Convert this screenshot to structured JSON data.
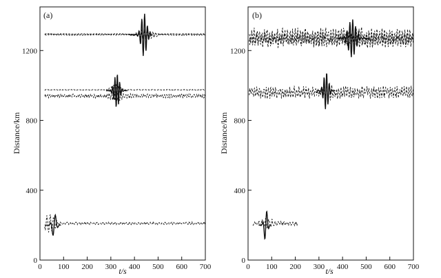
{
  "chart_data": [
    {
      "type": "line",
      "panel_label": "(a)",
      "xlabel": "t/s",
      "ylabel": "Distance/km",
      "xlim": [
        0,
        700
      ],
      "ylim": [
        0,
        1450
      ],
      "xticks": [
        "0",
        "100",
        "200",
        "300",
        "400",
        "500",
        "600",
        "700"
      ],
      "yticks": [
        "0",
        "400",
        "800",
        "1200"
      ],
      "grid": false,
      "series": [
        {
          "style": "solid",
          "offset": 200,
          "t_start": 20,
          "t_end": 90,
          "center": 60,
          "amp": 70,
          "period": 22,
          "width": 12
        },
        {
          "style": "dashed",
          "offset": 210,
          "t_start": 20,
          "t_end": 700,
          "center": 40,
          "amp": 55,
          "period": 14,
          "width": 30,
          "noise": 6
        },
        {
          "style": "solid",
          "offset": 970,
          "t_start": 280,
          "t_end": 370,
          "center": 325,
          "amp": 100,
          "period": 10,
          "width": 15
        },
        {
          "style": "dashed",
          "offset": 975,
          "t_start": 20,
          "t_end": 700,
          "center": 320,
          "amp": 30,
          "period": 10,
          "width": 25,
          "noise": 2
        },
        {
          "style": "dashed",
          "offset": 940,
          "t_start": 20,
          "t_end": 700,
          "center": 330,
          "amp": 30,
          "period": 10,
          "width": 35,
          "noise": 9
        },
        {
          "style": "solid",
          "offset": 1290,
          "t_start": 380,
          "t_end": 475,
          "center": 440,
          "amp": 125,
          "period": 12,
          "width": 16
        },
        {
          "style": "dashed",
          "offset": 1295,
          "t_start": 20,
          "t_end": 700,
          "center": 440,
          "amp": 25,
          "period": 12,
          "width": 30,
          "noise": 2
        },
        {
          "style": "dashed",
          "offset": 1290,
          "t_start": 20,
          "t_end": 700,
          "center": 450,
          "amp": 25,
          "period": 12,
          "width": 40,
          "noise": 3
        }
      ]
    },
    {
      "type": "line",
      "panel_label": "(b)",
      "xlabel": "t/s",
      "ylabel": "Distance/km",
      "xlim": [
        0,
        700
      ],
      "ylim": [
        0,
        1450
      ],
      "xticks": [
        "0",
        "100",
        "200",
        "300",
        "400",
        "500",
        "600",
        "700"
      ],
      "yticks": [
        "0",
        "400",
        "800",
        "1200"
      ],
      "grid": false,
      "series": [
        {
          "style": "solid",
          "offset": 200,
          "t_start": 45,
          "t_end": 100,
          "center": 75,
          "amp": 95,
          "period": 18,
          "width": 10
        },
        {
          "style": "dashed",
          "offset": 210,
          "t_start": 20,
          "t_end": 210,
          "center": 70,
          "amp": 25,
          "period": 14,
          "width": 40,
          "noise": 10
        },
        {
          "style": "solid",
          "offset": 970,
          "t_start": 290,
          "t_end": 370,
          "center": 330,
          "amp": 110,
          "period": 11,
          "width": 14
        },
        {
          "style": "dashed",
          "offset": 960,
          "t_start": 5,
          "t_end": 700,
          "center": 330,
          "amp": 30,
          "period": 11,
          "width": 30,
          "noise": 30
        },
        {
          "style": "solid",
          "offset": 1270,
          "t_start": 380,
          "t_end": 510,
          "center": 440,
          "amp": 110,
          "period": 12,
          "width": 22
        },
        {
          "style": "dashed",
          "offset": 1280,
          "t_start": 5,
          "t_end": 700,
          "center": 440,
          "amp": 30,
          "period": 12,
          "width": 30,
          "noise": 40
        },
        {
          "style": "dashed",
          "offset": 1260,
          "t_start": 5,
          "t_end": 700,
          "center": 450,
          "amp": 30,
          "period": 12,
          "width": 30,
          "noise": 35
        }
      ]
    }
  ]
}
